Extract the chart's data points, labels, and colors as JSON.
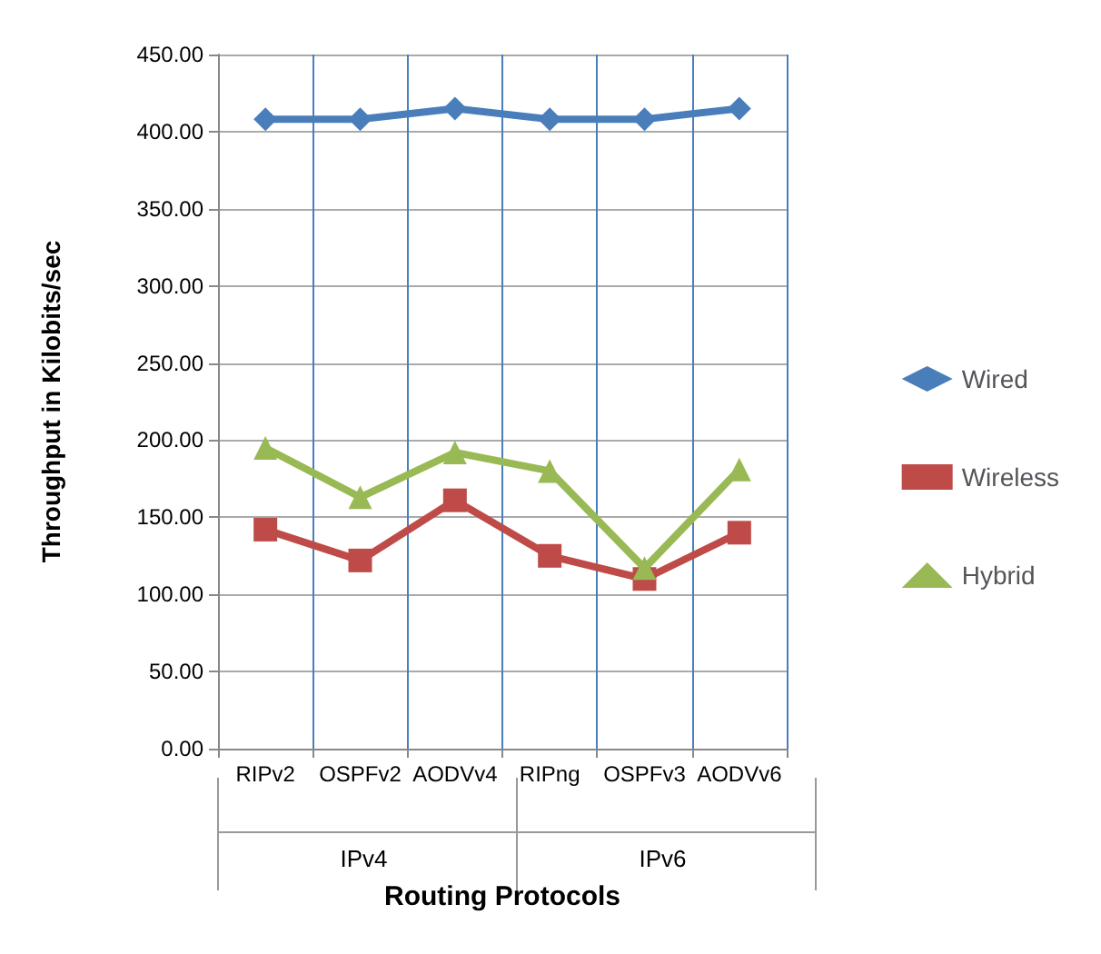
{
  "chart_data": {
    "type": "line",
    "xlabel": "Routing Protocols",
    "ylabel": "Throughput in Kilobits/sec",
    "categories": [
      "RIPv2",
      "OSPFv2",
      "AODVv4",
      "RIPng",
      "OSPFv3",
      "AODVv6"
    ],
    "series": [
      {
        "name": "Wired",
        "color": "#4a7ebb",
        "marker": "diamond",
        "values": [
          408,
          408,
          415,
          408,
          408,
          415
        ]
      },
      {
        "name": "Wireless",
        "color": "#be4b48",
        "marker": "square",
        "values": [
          142,
          122,
          161,
          125,
          110,
          140
        ]
      },
      {
        "name": "Hybrid",
        "color": "#98b954",
        "marker": "triangle",
        "values": [
          195,
          163,
          192,
          180,
          117,
          181
        ]
      }
    ],
    "annotations": [
      "IPv4",
      "IPv6"
    ],
    "ylim": [
      0,
      450
    ],
    "yticks": [
      {
        "value": 0,
        "label": "0.00"
      },
      {
        "value": 50,
        "label": "50.00"
      },
      {
        "value": 100,
        "label": "100.00"
      },
      {
        "value": 150,
        "label": "150.00"
      },
      {
        "value": 200,
        "label": "200.00"
      },
      {
        "value": 250,
        "label": "250.00"
      },
      {
        "value": 300,
        "label": "300.00"
      },
      {
        "value": 350,
        "label": "350.00"
      },
      {
        "value": 400,
        "label": "400.00"
      },
      {
        "value": 450,
        "label": "450.00"
      }
    ],
    "grid": true,
    "legend": "right",
    "line_style": "solid"
  }
}
